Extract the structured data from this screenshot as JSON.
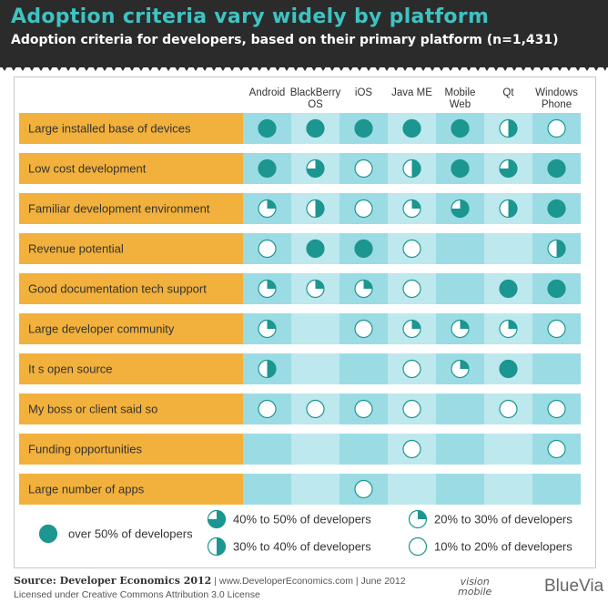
{
  "header": {
    "title": "Adoption criteria vary widely by platform",
    "subtitle": "Adoption criteria for developers, based on their primary platform (n=1,431)"
  },
  "colors": {
    "row_label_bg": "#f2b13c",
    "cell_bg": "#9bdce4",
    "cell_bg_alt": "#bde8ee",
    "dot": "#1b9690",
    "title": "#3fc2c2",
    "header_bg": "#2b2b2b"
  },
  "chart_data": {
    "type": "table",
    "title": "Adoption criteria vary widely by platform",
    "subtitle": "Adoption criteria for developers, based on their primary platform (n=1,431)",
    "platforms": [
      "Android",
      "BlackBerry\nOS",
      "iOS",
      "Java ME",
      "Mobile\nWeb",
      "Qt",
      "Windows\nPhone"
    ],
    "criteria": [
      "Large installed base of devices",
      "Low cost development",
      "Familiar development environment",
      "Revenue potential",
      "Good documentation  tech support",
      "Large developer community",
      "It s open source",
      "My boss or client said so",
      "Funding opportunities",
      "Large number of apps"
    ],
    "levels": {
      "4": "over 50% of developers",
      "3": "40% to 50% of developers",
      "2": "30% to 40% of developers",
      "1": "20% to 30% of developers",
      "0": "10% to 20% of developers"
    },
    "matrix": [
      [
        4,
        4,
        4,
        4,
        4,
        2,
        0
      ],
      [
        4,
        3,
        0,
        2,
        4,
        3,
        4
      ],
      [
        1,
        2,
        0,
        1,
        3,
        2,
        4
      ],
      [
        0,
        4,
        4,
        0,
        null,
        null,
        2
      ],
      [
        1,
        1,
        1,
        0,
        null,
        4,
        4
      ],
      [
        1,
        null,
        0,
        1,
        1,
        1,
        0
      ],
      [
        2,
        null,
        null,
        0,
        1,
        4,
        null
      ],
      [
        0,
        0,
        0,
        0,
        null,
        0,
        0
      ],
      [
        null,
        null,
        null,
        0,
        null,
        null,
        0
      ],
      [
        null,
        null,
        0,
        null,
        null,
        null,
        null
      ]
    ],
    "legend": [
      {
        "level": 4,
        "label": "over 50% of developers"
      },
      {
        "level": 3,
        "label": "40% to 50% of developers"
      },
      {
        "level": 2,
        "label": "30% to 40% of developers"
      },
      {
        "level": 1,
        "label": "20% to 30% of developers"
      },
      {
        "level": 0,
        "label": "10% to 20% of developers"
      }
    ]
  },
  "footer": {
    "source": "Source: Developer Economics 2012",
    "details": " | www.DeveloperEconomics.com | June 2012",
    "license": "Licensed under Creative Commons Attribution 3.0 License"
  },
  "logos": {
    "visionmobile_line1": "vision",
    "visionmobile_line2": "mobile",
    "bluevia": "BlueVia"
  }
}
